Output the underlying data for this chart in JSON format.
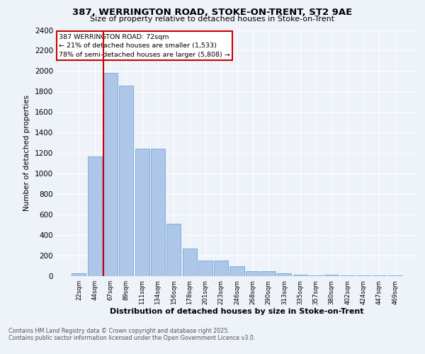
{
  "title_line1": "387, WERRINGTON ROAD, STOKE-ON-TRENT, ST2 9AE",
  "title_line2": "Size of property relative to detached houses in Stoke-on-Trent",
  "xlabel": "Distribution of detached houses by size in Stoke-on-Trent",
  "ylabel": "Number of detached properties",
  "categories": [
    "22sqm",
    "44sqm",
    "67sqm",
    "89sqm",
    "111sqm",
    "134sqm",
    "156sqm",
    "178sqm",
    "201sqm",
    "223sqm",
    "246sqm",
    "268sqm",
    "290sqm",
    "313sqm",
    "335sqm",
    "357sqm",
    "380sqm",
    "402sqm",
    "424sqm",
    "447sqm",
    "469sqm"
  ],
  "values": [
    25,
    1170,
    1980,
    1855,
    1240,
    1240,
    510,
    270,
    155,
    155,
    95,
    50,
    50,
    30,
    15,
    10,
    15,
    5,
    5,
    5,
    10
  ],
  "bar_color": "#aec6e8",
  "bar_edgecolor": "#5a9fd4",
  "vline_color": "#cc0000",
  "annotation_title": "387 WERRINGTON ROAD: 72sqm",
  "annotation_line1": "← 21% of detached houses are smaller (1,533)",
  "annotation_line2": "78% of semi-detached houses are larger (5,808) →",
  "annotation_box_color": "#cc0000",
  "ylim": [
    0,
    2400
  ],
  "yticks": [
    0,
    200,
    400,
    600,
    800,
    1000,
    1200,
    1400,
    1600,
    1800,
    2000,
    2200,
    2400
  ],
  "background_color": "#eef2f9",
  "grid_color": "#ffffff",
  "footer_line1": "Contains HM Land Registry data © Crown copyright and database right 2025.",
  "footer_line2": "Contains public sector information licensed under the Open Government Licence v3.0."
}
